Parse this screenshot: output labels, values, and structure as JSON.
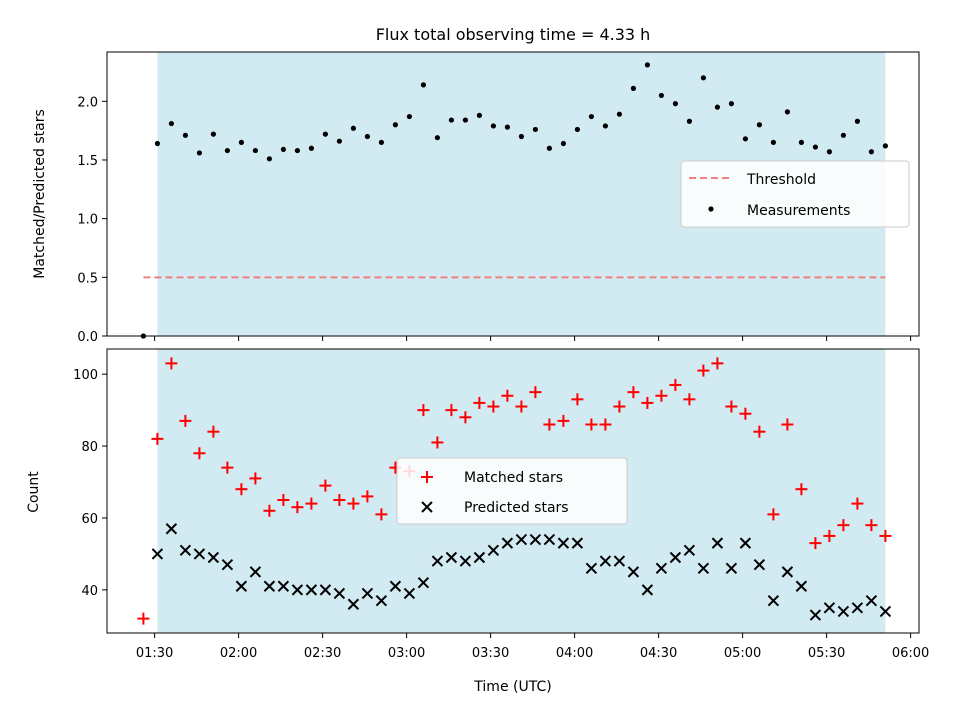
{
  "title": "Flux total observing time = 4.33 h",
  "colors": {
    "shade": "#add8e6",
    "threshold": "#f08080",
    "measurement": "#000000",
    "matched": "#ff0000",
    "predicted": "#000000"
  },
  "chart_data": [
    {
      "type": "scatter",
      "panel": "top",
      "ylabel": "Matched/Predicted stars",
      "ylim": [
        0,
        2.42
      ],
      "yticks": [
        "0.0",
        "0.5",
        "1.0",
        "1.5",
        "2.0"
      ],
      "shaded_interval": [
        "01:31",
        "05:51"
      ],
      "legend": {
        "placement": "center-right",
        "entries": [
          "Threshold",
          "Measurements"
        ]
      },
      "threshold": {
        "name": "Threshold",
        "value": 0.5,
        "x_range": [
          "01:26",
          "05:51"
        ]
      },
      "series": [
        {
          "name": "Measurements",
          "x": [
            "01:26",
            "01:31",
            "01:36",
            "01:41",
            "01:46",
            "01:51",
            "01:56",
            "02:01",
            "02:06",
            "02:11",
            "02:16",
            "02:21",
            "02:26",
            "02:31",
            "02:36",
            "02:41",
            "02:46",
            "02:51",
            "02:56",
            "03:01",
            "03:06",
            "03:11",
            "03:16",
            "03:21",
            "03:26",
            "03:31",
            "03:36",
            "03:41",
            "03:46",
            "03:51",
            "03:56",
            "04:01",
            "04:06",
            "04:11",
            "04:16",
            "04:21",
            "04:26",
            "04:31",
            "04:36",
            "04:41",
            "04:46",
            "04:51",
            "04:56",
            "05:01",
            "05:06",
            "05:11",
            "05:16",
            "05:21",
            "05:26",
            "05:31",
            "05:36",
            "05:41",
            "05:46",
            "05:51"
          ],
          "y": [
            0.0,
            1.64,
            1.81,
            1.71,
            1.56,
            1.72,
            1.58,
            1.65,
            1.58,
            1.51,
            1.59,
            1.58,
            1.6,
            1.72,
            1.66,
            1.77,
            1.7,
            1.65,
            1.8,
            1.87,
            2.14,
            1.69,
            1.84,
            1.84,
            1.88,
            1.79,
            1.78,
            1.7,
            1.76,
            1.6,
            1.64,
            1.76,
            1.87,
            1.79,
            1.89,
            2.11,
            2.31,
            2.05,
            1.98,
            1.83,
            2.2,
            1.95,
            1.98,
            1.68,
            1.8,
            1.65,
            1.91,
            1.65,
            1.61,
            1.57,
            1.71,
            1.83,
            1.57,
            1.62
          ]
        }
      ]
    },
    {
      "type": "scatter",
      "panel": "bottom",
      "xlabel": "Time (UTC)",
      "ylabel": "Count",
      "ylim": [
        28,
        107
      ],
      "yticks": [
        "40",
        "60",
        "80",
        "100"
      ],
      "xlim": [
        "01:13",
        "06:03"
      ],
      "xticks": [
        "01:30",
        "02:00",
        "02:30",
        "03:00",
        "03:30",
        "04:00",
        "04:30",
        "05:00",
        "05:30",
        "06:00"
      ],
      "shaded_interval": [
        "01:31",
        "05:51"
      ],
      "legend": {
        "placement": "center",
        "entries": [
          "Matched stars",
          "Predicted stars"
        ]
      },
      "series": [
        {
          "name": "Matched stars",
          "marker": "+",
          "x": [
            "01:26",
            "01:31",
            "01:36",
            "01:41",
            "01:46",
            "01:51",
            "01:56",
            "02:01",
            "02:06",
            "02:11",
            "02:16",
            "02:21",
            "02:26",
            "02:31",
            "02:36",
            "02:41",
            "02:46",
            "02:51",
            "02:56",
            "03:01",
            "03:06",
            "03:11",
            "03:16",
            "03:21",
            "03:26",
            "03:31",
            "03:36",
            "03:41",
            "03:46",
            "03:51",
            "03:56",
            "04:01",
            "04:06",
            "04:11",
            "04:16",
            "04:21",
            "04:26",
            "04:31",
            "04:36",
            "04:41",
            "04:46",
            "04:51",
            "04:56",
            "05:01",
            "05:06",
            "05:11",
            "05:16",
            "05:21",
            "05:26",
            "05:31",
            "05:36",
            "05:41",
            "05:46",
            "05:51"
          ],
          "y": [
            32,
            82,
            103,
            87,
            78,
            84,
            74,
            68,
            71,
            62,
            65,
            63,
            64,
            69,
            65,
            64,
            66,
            61,
            74,
            73,
            90,
            81,
            90,
            88,
            92,
            91,
            94,
            91,
            95,
            86,
            87,
            93,
            86,
            86,
            91,
            95,
            92,
            94,
            97,
            93,
            101,
            103,
            91,
            89,
            84,
            61,
            86,
            68,
            53,
            55,
            58,
            64,
            58,
            55
          ]
        },
        {
          "name": "Predicted stars",
          "marker": "x",
          "x": [
            "01:31",
            "01:36",
            "01:41",
            "01:46",
            "01:51",
            "01:56",
            "02:01",
            "02:06",
            "02:11",
            "02:16",
            "02:21",
            "02:26",
            "02:31",
            "02:36",
            "02:41",
            "02:46",
            "02:51",
            "02:56",
            "03:01",
            "03:06",
            "03:11",
            "03:16",
            "03:21",
            "03:26",
            "03:31",
            "03:36",
            "03:41",
            "03:46",
            "03:51",
            "03:56",
            "04:01",
            "04:06",
            "04:11",
            "04:16",
            "04:21",
            "04:26",
            "04:31",
            "04:36",
            "04:41",
            "04:46",
            "04:51",
            "04:56",
            "05:01",
            "05:06",
            "05:11",
            "05:16",
            "05:21",
            "05:26",
            "05:31",
            "05:36",
            "05:41",
            "05:46",
            "05:51"
          ],
          "y": [
            50,
            57,
            51,
            50,
            49,
            47,
            41,
            45,
            41,
            41,
            40,
            40,
            40,
            39,
            36,
            39,
            37,
            41,
            39,
            42,
            48,
            49,
            48,
            49,
            51,
            53,
            54,
            54,
            54,
            53,
            53,
            46,
            48,
            48,
            45,
            40,
            46,
            49,
            51,
            46,
            53,
            46,
            53,
            47,
            37,
            45,
            41,
            33,
            35,
            34,
            35,
            37,
            34
          ]
        }
      ]
    }
  ]
}
